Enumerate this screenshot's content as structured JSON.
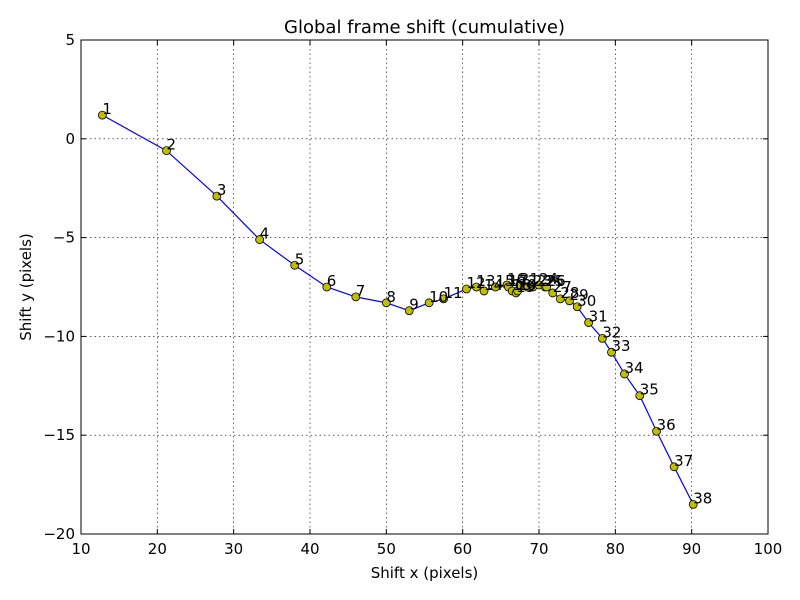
{
  "chart_data": {
    "type": "line",
    "title": "Global frame shift (cumulative)",
    "xlabel": "Shift x (pixels)",
    "ylabel": "Shift y (pixels)",
    "xlim": [
      10,
      100
    ],
    "ylim": [
      -20,
      5
    ],
    "xticks": [
      10,
      20,
      30,
      40,
      50,
      60,
      70,
      80,
      90,
      100
    ],
    "yticks": [
      -20,
      -15,
      -10,
      -5,
      0,
      5
    ],
    "grid": true,
    "line_color": "#0000ff",
    "marker_color": "#bfbf00",
    "points": [
      {
        "label": "1",
        "x": 12.8,
        "y": 1.2
      },
      {
        "label": "2",
        "x": 21.2,
        "y": -0.6
      },
      {
        "label": "3",
        "x": 27.8,
        "y": -2.9
      },
      {
        "label": "4",
        "x": 33.4,
        "y": -5.1
      },
      {
        "label": "5",
        "x": 38.0,
        "y": -6.4
      },
      {
        "label": "6",
        "x": 42.2,
        "y": -7.5
      },
      {
        "label": "7",
        "x": 46.0,
        "y": -8.0
      },
      {
        "label": "8",
        "x": 50.0,
        "y": -8.3
      },
      {
        "label": "9",
        "x": 53.0,
        "y": -8.7
      },
      {
        "label": "10",
        "x": 55.6,
        "y": -8.3
      },
      {
        "label": "11",
        "x": 57.5,
        "y": -8.1
      },
      {
        "label": "12",
        "x": 60.5,
        "y": -7.6
      },
      {
        "label": "13",
        "x": 61.8,
        "y": -7.5
      },
      {
        "label": "14",
        "x": 62.8,
        "y": -7.7
      },
      {
        "label": "15",
        "x": 64.3,
        "y": -7.5
      },
      {
        "label": "16",
        "x": 65.8,
        "y": -7.4
      },
      {
        "label": "17",
        "x": 66.0,
        "y": -7.5
      },
      {
        "label": "18",
        "x": 66.5,
        "y": -7.7
      },
      {
        "label": "19",
        "x": 67.0,
        "y": -7.8
      },
      {
        "label": "20",
        "x": 67.2,
        "y": -7.7
      },
      {
        "label": "21",
        "x": 67.5,
        "y": -7.4
      },
      {
        "label": "22",
        "x": 68.5,
        "y": -7.5
      },
      {
        "label": "23",
        "x": 69.2,
        "y": -7.5
      },
      {
        "label": "24",
        "x": 70.0,
        "y": -7.4
      },
      {
        "label": "25",
        "x": 70.8,
        "y": -7.5
      },
      {
        "label": "26",
        "x": 71.0,
        "y": -7.5
      },
      {
        "label": "27",
        "x": 71.8,
        "y": -7.8
      },
      {
        "label": "28",
        "x": 72.8,
        "y": -8.1
      },
      {
        "label": "29",
        "x": 74.0,
        "y": -8.2
      },
      {
        "label": "30",
        "x": 75.0,
        "y": -8.5
      },
      {
        "label": "31",
        "x": 76.5,
        "y": -9.3
      },
      {
        "label": "32",
        "x": 78.3,
        "y": -10.1
      },
      {
        "label": "33",
        "x": 79.5,
        "y": -10.8
      },
      {
        "label": "34",
        "x": 81.2,
        "y": -11.9
      },
      {
        "label": "35",
        "x": 83.2,
        "y": -13.0
      },
      {
        "label": "36",
        "x": 85.4,
        "y": -14.8
      },
      {
        "label": "37",
        "x": 87.7,
        "y": -16.6
      },
      {
        "label": "38",
        "x": 90.2,
        "y": -18.5
      }
    ]
  }
}
